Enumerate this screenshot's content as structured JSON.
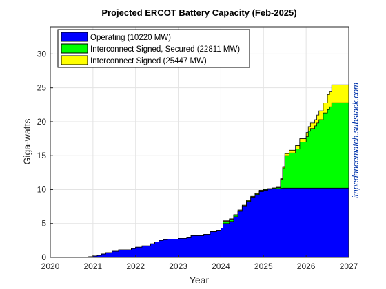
{
  "chart_data": {
    "type": "area",
    "title": "Projected ERCOT Battery Capacity (Feb-2025)",
    "xlabel": "Year",
    "ylabel": "Giga-watts",
    "xlim": [
      2020,
      2027
    ],
    "ylim": [
      0,
      34
    ],
    "xticks": [
      "2020",
      "2021",
      "2022",
      "2023",
      "2024",
      "2025",
      "2026",
      "2027"
    ],
    "yticks": [
      "0",
      "5",
      "10",
      "15",
      "20",
      "25",
      "30"
    ],
    "grid": true,
    "legend_position": "top-left",
    "watermark": "impedancematch.substack.com",
    "x": [
      2020.0,
      2020.5,
      2020.9,
      2021.0,
      2021.1,
      2021.2,
      2021.3,
      2021.45,
      2021.6,
      2021.9,
      2022.0,
      2022.15,
      2022.35,
      2022.45,
      2022.55,
      2022.65,
      2022.75,
      2023.0,
      2023.2,
      2023.3,
      2023.6,
      2023.75,
      2023.9,
      2024.0,
      2024.05,
      2024.2,
      2024.3,
      2024.4,
      2024.5,
      2024.6,
      2024.7,
      2024.8,
      2024.9,
      2025.0,
      2025.1,
      2025.2,
      2025.3,
      2025.4,
      2025.45,
      2025.5,
      2025.6,
      2025.75,
      2025.85,
      2026.0,
      2026.05,
      2026.1,
      2026.2,
      2026.25,
      2026.3,
      2026.4,
      2026.5,
      2026.55,
      2026.6,
      2026.95,
      2027.0
    ],
    "series": [
      {
        "name": "Operating (10220 MW)",
        "color": "#0000ff",
        "values": [
          0.0,
          0.05,
          0.1,
          0.2,
          0.3,
          0.5,
          0.7,
          0.9,
          1.1,
          1.3,
          1.5,
          1.7,
          2.0,
          2.3,
          2.5,
          2.6,
          2.7,
          2.8,
          2.9,
          3.2,
          3.4,
          3.8,
          4.0,
          4.3,
          5.0,
          5.3,
          6.0,
          6.8,
          7.5,
          8.2,
          8.8,
          9.2,
          9.7,
          9.9,
          10.05,
          10.1,
          10.15,
          10.2,
          10.22,
          10.22,
          10.22,
          10.22,
          10.22,
          10.22,
          10.22,
          10.22,
          10.22,
          10.22,
          10.22,
          10.22,
          10.22,
          10.22,
          10.22,
          10.22,
          10.22
        ]
      },
      {
        "name": "Interconnect Signed, Secured (22811 MW)",
        "color": "#00ff00",
        "values": [
          0.0,
          0.05,
          0.1,
          0.2,
          0.3,
          0.5,
          0.7,
          0.9,
          1.1,
          1.3,
          1.5,
          1.7,
          2.0,
          2.3,
          2.5,
          2.6,
          2.7,
          2.8,
          2.9,
          3.2,
          3.4,
          3.8,
          4.0,
          4.3,
          5.3,
          5.6,
          6.2,
          6.9,
          7.6,
          8.3,
          8.9,
          9.3,
          9.8,
          10.0,
          10.1,
          10.2,
          10.3,
          11.5,
          13.2,
          15.0,
          15.4,
          16.0,
          17.0,
          17.8,
          18.6,
          19.0,
          19.4,
          19.8,
          20.3,
          21.3,
          21.8,
          22.2,
          22.811,
          22.811,
          22.811
        ]
      },
      {
        "name": "Interconnect Signed (25447 MW)",
        "color": "#ffff00",
        "values": [
          0.0,
          0.05,
          0.1,
          0.2,
          0.3,
          0.5,
          0.7,
          0.9,
          1.1,
          1.3,
          1.5,
          1.7,
          2.0,
          2.3,
          2.5,
          2.6,
          2.7,
          2.8,
          2.9,
          3.2,
          3.4,
          3.8,
          4.0,
          4.3,
          5.4,
          5.7,
          6.3,
          7.0,
          7.7,
          8.4,
          9.0,
          9.4,
          9.9,
          10.05,
          10.15,
          10.25,
          10.35,
          11.6,
          13.4,
          15.3,
          15.8,
          16.5,
          17.5,
          18.4,
          19.3,
          19.8,
          20.3,
          21.0,
          21.6,
          22.8,
          24.0,
          24.5,
          25.447,
          25.447,
          25.447
        ]
      }
    ]
  }
}
